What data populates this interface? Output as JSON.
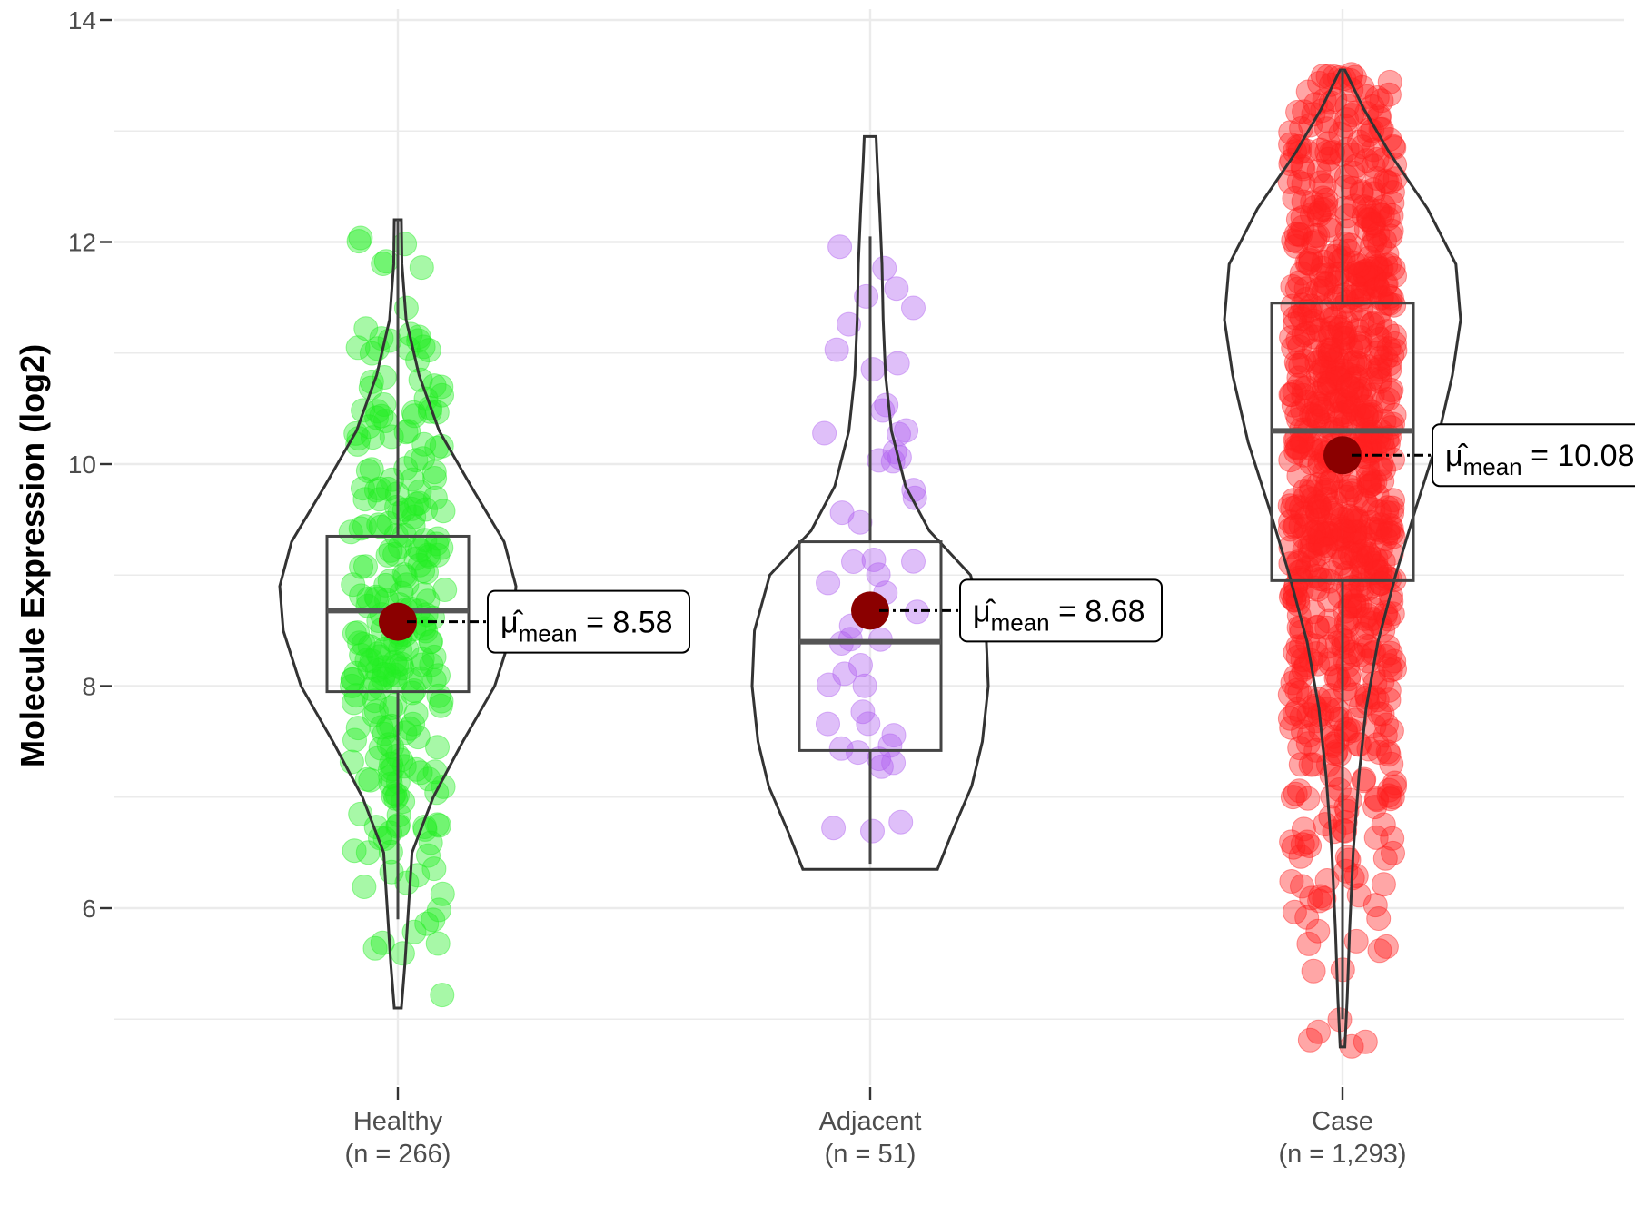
{
  "chart_data": {
    "type": "violin",
    "ylabel": "Molecule Expression (log2)",
    "xlabel": "",
    "ylim": [
      4.2,
      14.0
    ],
    "yticks": [
      6,
      8,
      10,
      12,
      14
    ],
    "grid": true,
    "mean_symbol": "μ̂",
    "mean_subscript": "mean",
    "groups": [
      {
        "name": "Healthy",
        "n_label": "(n = 266)",
        "n": 266,
        "color": "#22ee22",
        "mean": 8.58,
        "mean_label": "8.58",
        "box": {
          "q1": 7.95,
          "median": 8.68,
          "q3": 9.35
        },
        "whisker": [
          5.9,
          12.2
        ],
        "range": [
          5.1,
          12.2
        ],
        "density": [
          [
            5.1,
            0.03
          ],
          [
            5.5,
            0.06
          ],
          [
            6.0,
            0.09
          ],
          [
            6.5,
            0.12
          ],
          [
            7.0,
            0.3
          ],
          [
            7.5,
            0.55
          ],
          [
            8.0,
            0.82
          ],
          [
            8.5,
            0.97
          ],
          [
            8.9,
            1.0
          ],
          [
            9.3,
            0.9
          ],
          [
            9.8,
            0.62
          ],
          [
            10.3,
            0.35
          ],
          [
            10.8,
            0.18
          ],
          [
            11.3,
            0.07
          ],
          [
            11.8,
            0.035
          ],
          [
            12.2,
            0.03
          ]
        ]
      },
      {
        "name": "Adjacent",
        "n_label": "(n = 51)",
        "n": 51,
        "color": "#b060f0",
        "mean": 8.68,
        "mean_label": "8.68",
        "box": {
          "q1": 7.42,
          "median": 8.4,
          "q3": 9.3
        },
        "whisker": [
          6.4,
          12.05
        ],
        "range": [
          6.35,
          12.95
        ],
        "density": [
          [
            6.35,
            0.57
          ],
          [
            6.7,
            0.7
          ],
          [
            7.1,
            0.86
          ],
          [
            7.5,
            0.95
          ],
          [
            8.0,
            1.0
          ],
          [
            8.5,
            0.98
          ],
          [
            9.0,
            0.85
          ],
          [
            9.4,
            0.5
          ],
          [
            9.8,
            0.3
          ],
          [
            10.3,
            0.18
          ],
          [
            10.8,
            0.13
          ],
          [
            11.3,
            0.11
          ],
          [
            11.8,
            0.1
          ],
          [
            12.3,
            0.08
          ],
          [
            12.7,
            0.06
          ],
          [
            12.95,
            0.05
          ]
        ]
      },
      {
        "name": "Case",
        "n_label": "(n = 1,293)",
        "n": 1293,
        "color": "#ff2020",
        "mean": 10.08,
        "mean_label": "10.08",
        "box": {
          "q1": 8.95,
          "median": 10.3,
          "q3": 11.45
        },
        "whisker": [
          5.0,
          13.55
        ],
        "range": [
          4.75,
          13.55
        ],
        "density": [
          [
            4.75,
            0.02
          ],
          [
            5.2,
            0.04
          ],
          [
            5.8,
            0.06
          ],
          [
            6.5,
            0.09
          ],
          [
            7.2,
            0.14
          ],
          [
            7.8,
            0.2
          ],
          [
            8.4,
            0.3
          ],
          [
            9.0,
            0.45
          ],
          [
            9.6,
            0.62
          ],
          [
            10.2,
            0.8
          ],
          [
            10.8,
            0.93
          ],
          [
            11.3,
            1.0
          ],
          [
            11.8,
            0.96
          ],
          [
            12.3,
            0.72
          ],
          [
            12.8,
            0.4
          ],
          [
            13.2,
            0.18
          ],
          [
            13.55,
            0.02
          ]
        ]
      }
    ]
  }
}
